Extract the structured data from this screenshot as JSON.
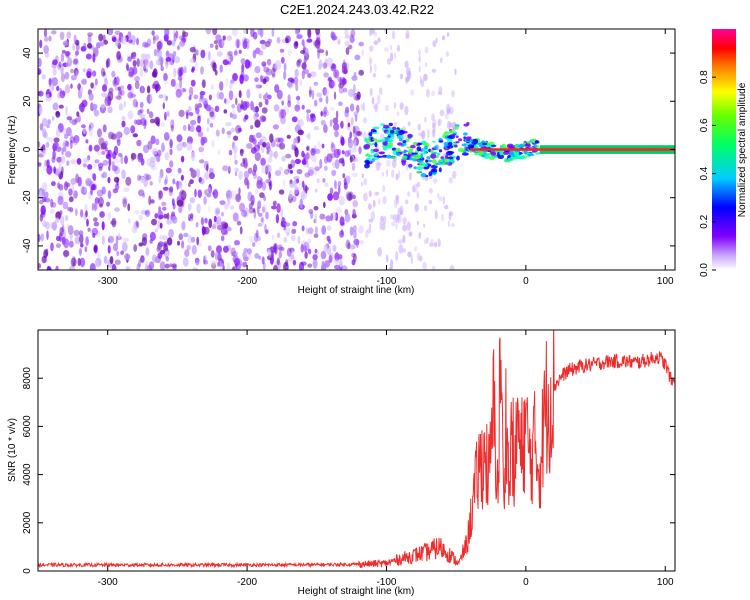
{
  "title": "C2E1.2024.243.03.42.R22",
  "colors": {
    "signal": "#ee2c2c",
    "line": "#000000",
    "spectrogram_low": "#8a2be2",
    "spectrogram_core": "#00c8ff",
    "spectrogram_peak": "#ff2020"
  },
  "chart_data": [
    {
      "type": "heatmap",
      "title": "C2E1.2024.243.03.42.R22",
      "xlabel": "Height of straight line (km)",
      "ylabel": "Frequency (Hz)",
      "xlim": [
        -350,
        107
      ],
      "ylim": [
        -50,
        50
      ],
      "xticks": [
        -300,
        -200,
        -100,
        0,
        100
      ],
      "yticks": [
        -40,
        -20,
        0,
        20,
        40
      ],
      "colorbar": {
        "label": "Normalized spectral amplitude",
        "range": [
          0,
          1
        ],
        "ticks": [
          "0.0",
          "0.2",
          "0.4",
          "0.6",
          "0.8"
        ]
      },
      "description_points": [
        {
          "x_range": [
            -350,
            -120
          ],
          "freq": "broadband noise",
          "amplitude": 0.15
        },
        {
          "x_range": [
            -115,
            -60
          ],
          "freq_center": 0,
          "freq_spread": 10,
          "amplitude": 0.3
        },
        {
          "x_range": [
            -50,
            10
          ],
          "freq_center": 0,
          "freq_spread": 6,
          "amplitude": 0.55
        },
        {
          "x_range": [
            10,
            107
          ],
          "freq_center": 0,
          "freq_spread": 1,
          "amplitude": 1.0
        }
      ]
    },
    {
      "type": "line",
      "xlabel": "Height of straight line (km)",
      "ylabel": "SNR (10 * v/v)",
      "xlim": [
        -350,
        107
      ],
      "ylim": [
        0,
        10000
      ],
      "xticks": [
        -300,
        -200,
        -100,
        0,
        100
      ],
      "yticks": [
        0,
        2000,
        4000,
        6000,
        8000
      ],
      "series": [
        {
          "x": [
            -350,
            -300,
            -250,
            -200,
            -150,
            -120,
            -100,
            -90,
            -80,
            -70,
            -62,
            -55,
            -48,
            -42,
            -38,
            -34,
            -30,
            -26,
            -23,
            -20,
            -18,
            -16,
            -14,
            -12,
            -10,
            -8,
            -6,
            -4,
            -2,
            0,
            3,
            6,
            10,
            14,
            18,
            22,
            26,
            30,
            35,
            40,
            50,
            60,
            70,
            80,
            90,
            95,
            100,
            105,
            107
          ],
          "y": [
            250,
            250,
            250,
            250,
            260,
            280,
            320,
            500,
            650,
            800,
            1000,
            700,
            300,
            1200,
            2800,
            4200,
            4800,
            4000,
            6800,
            3200,
            9800,
            2500,
            7000,
            3000,
            6200,
            3500,
            6800,
            4500,
            5500,
            6000,
            4500,
            5300,
            4200,
            6800,
            7400,
            7800,
            8100,
            8300,
            8400,
            8500,
            8600,
            8700,
            8700,
            8650,
            8800,
            8900,
            8600,
            7800,
            8000
          ]
        }
      ]
    }
  ]
}
